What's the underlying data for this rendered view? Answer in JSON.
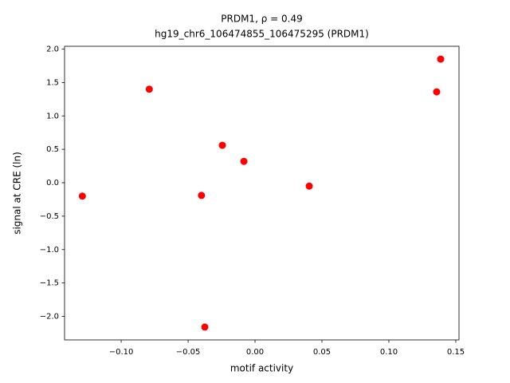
{
  "chart_data": {
    "type": "scatter",
    "title": "PRDM1, ρ = 0.49",
    "subtitle": "hg19_chr6_106474855_106475295 (PRDM1)",
    "x_label": "motif activity",
    "y_label": "signal at CRE (ln)",
    "color": "#ff0000",
    "x": [
      -0.129,
      -0.079,
      -0.04,
      -0.0375,
      -0.0244,
      -0.0083,
      0.0405,
      0.1357,
      0.1387
    ],
    "values": [
      -0.2,
      1.4,
      -0.19,
      -2.16,
      0.56,
      0.32,
      -0.05,
      1.36,
      1.85
    ],
    "xlim": [
      -0.1423,
      0.1524
    ],
    "ylim": [
      -2.352,
      2.042
    ],
    "xticks": [
      {
        "value": -0.1,
        "label": "−0.10"
      },
      {
        "value": -0.05,
        "label": "−0.05"
      },
      {
        "value": 0,
        "label": "0.00"
      },
      {
        "value": 0.05,
        "label": "0.05"
      },
      {
        "value": 0.1,
        "label": "0.10"
      },
      {
        "value": 0.15,
        "label": "0.15"
      }
    ],
    "yticks": [
      {
        "value": -2,
        "label": "−2.0"
      },
      {
        "value": -1.5,
        "label": "−1.5"
      },
      {
        "value": -1,
        "label": "−1.0"
      },
      {
        "value": -0.5,
        "label": "−0.5"
      },
      {
        "value": 0,
        "label": "0.0"
      },
      {
        "value": 0.5,
        "label": "0.5"
      },
      {
        "value": 1,
        "label": "1.0"
      },
      {
        "value": 1.5,
        "label": "1.5"
      },
      {
        "value": 2,
        "label": "2.0"
      }
    ]
  }
}
